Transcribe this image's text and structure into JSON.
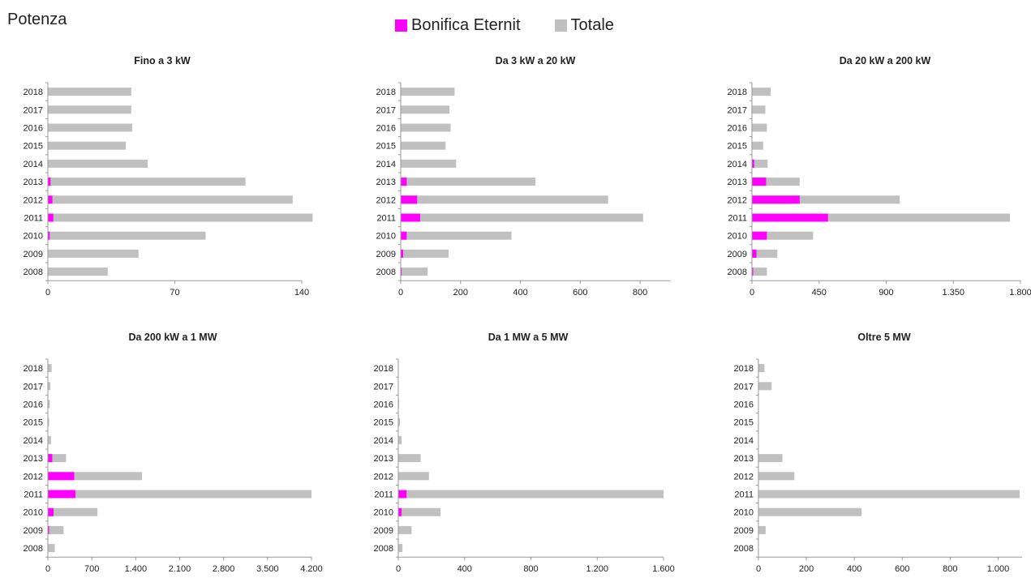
{
  "header": {
    "title": "Potenza"
  },
  "legend": [
    {
      "label": "Bonifica Eternit",
      "color": "#ff00ff"
    },
    {
      "label": "Totale",
      "color": "#c0c0c0"
    }
  ],
  "colors": {
    "bonifica": "#ff00ff",
    "totale": "#c0c0c0"
  },
  "chart_data": [
    {
      "type": "bar",
      "title": "Fino a 3 kW",
      "categories": [
        "2018",
        "2017",
        "2016",
        "2015",
        "2014",
        "2013",
        "2012",
        "2011",
        "2010",
        "2009",
        "2008"
      ],
      "series": [
        {
          "name": "Bonifica Eternit",
          "values": [
            0,
            0,
            0,
            0,
            0,
            1.5,
            2.5,
            3,
            1,
            0,
            0
          ]
        },
        {
          "name": "Totale",
          "values": [
            46,
            46,
            46.5,
            43,
            55,
            109,
            135,
            146,
            87,
            50,
            33
          ]
        }
      ],
      "xlim": [
        0,
        140
      ],
      "xticks": [
        "0",
        "70",
        "140"
      ],
      "xtick_values": [
        0,
        70,
        140
      ]
    },
    {
      "type": "bar",
      "title": "Da 3 kW a 20 kW",
      "categories": [
        "2018",
        "2017",
        "2016",
        "2015",
        "2014",
        "2013",
        "2012",
        "2011",
        "2010",
        "2009",
        "2008"
      ],
      "series": [
        {
          "name": "Bonifica Eternit",
          "values": [
            0,
            0,
            0,
            0,
            0,
            20,
            55,
            65,
            20,
            8,
            3
          ]
        },
        {
          "name": "Totale",
          "values": [
            180,
            163,
            167,
            150,
            185,
            450,
            693,
            810,
            370,
            160,
            90
          ]
        }
      ],
      "xlim": [
        0,
        900
      ],
      "xticks": [
        "0",
        "200",
        "400",
        "600",
        "800"
      ],
      "xtick_values": [
        0,
        200,
        400,
        600,
        800
      ]
    },
    {
      "type": "bar",
      "title": "Da 20 kW a 200 kW",
      "categories": [
        "2018",
        "2017",
        "2016",
        "2015",
        "2014",
        "2013",
        "2012",
        "2011",
        "2010",
        "2009",
        "2008"
      ],
      "series": [
        {
          "name": "Bonifica Eternit",
          "values": [
            0,
            0,
            0,
            0,
            15,
            95,
            320,
            510,
            100,
            30,
            8
          ]
        },
        {
          "name": "Totale",
          "values": [
            125,
            90,
            100,
            75,
            105,
            320,
            990,
            1730,
            410,
            170,
            100
          ]
        }
      ],
      "xlim": [
        0,
        1800
      ],
      "xticks": [
        "0",
        "450",
        "900",
        "1.350",
        "1.800"
      ],
      "xtick_values": [
        0,
        450,
        900,
        1350,
        1800
      ]
    },
    {
      "type": "bar",
      "title": "Da 200 kW a 1 MW",
      "categories": [
        "2018",
        "2017",
        "2016",
        "2015",
        "2014",
        "2013",
        "2012",
        "2011",
        "2010",
        "2009",
        "2008"
      ],
      "series": [
        {
          "name": "Bonifica Eternit",
          "values": [
            0,
            0,
            0,
            0,
            0,
            70,
            420,
            440,
            90,
            20,
            0
          ]
        },
        {
          "name": "Totale",
          "values": [
            60,
            40,
            30,
            20,
            50,
            290,
            1500,
            4200,
            790,
            250,
            110
          ]
        }
      ],
      "xlim": [
        0,
        4200
      ],
      "xticks": [
        "0",
        "700",
        "1.400",
        "2.100",
        "2.800",
        "3.500",
        "4.200"
      ],
      "xtick_values": [
        0,
        700,
        1400,
        2100,
        2800,
        3500,
        4200
      ]
    },
    {
      "type": "bar",
      "title": "Da 1 MW a 5 MW",
      "categories": [
        "2018",
        "2017",
        "2016",
        "2015",
        "2014",
        "2013",
        "2012",
        "2011",
        "2010",
        "2009",
        "2008"
      ],
      "series": [
        {
          "name": "Bonifica Eternit",
          "values": [
            0,
            0,
            0,
            0,
            0,
            0,
            0,
            50,
            20,
            0,
            0
          ]
        },
        {
          "name": "Totale",
          "values": [
            0,
            0,
            5,
            10,
            20,
            135,
            185,
            1600,
            255,
            80,
            25
          ]
        }
      ],
      "xlim": [
        0,
        1600
      ],
      "xticks": [
        "0",
        "400",
        "800",
        "1.200",
        "1.600"
      ],
      "xtick_values": [
        0,
        400,
        800,
        1200,
        1600
      ]
    },
    {
      "type": "bar",
      "title": "Oltre 5 MW",
      "categories": [
        "2018",
        "2017",
        "2016",
        "2015",
        "2014",
        "2013",
        "2012",
        "2011",
        "2010",
        "2009",
        "2008"
      ],
      "series": [
        {
          "name": "Bonifica Eternit",
          "values": [
            0,
            0,
            0,
            0,
            0,
            0,
            0,
            0,
            0,
            0,
            0
          ]
        },
        {
          "name": "Totale",
          "values": [
            25,
            55,
            0,
            0,
            0,
            100,
            150,
            1090,
            430,
            30,
            0
          ]
        }
      ],
      "xlim": [
        0,
        1100
      ],
      "xticks": [
        "0",
        "200",
        "400",
        "600",
        "800",
        "1.000"
      ],
      "xtick_values": [
        0,
        200,
        400,
        600,
        800,
        1000
      ]
    }
  ]
}
